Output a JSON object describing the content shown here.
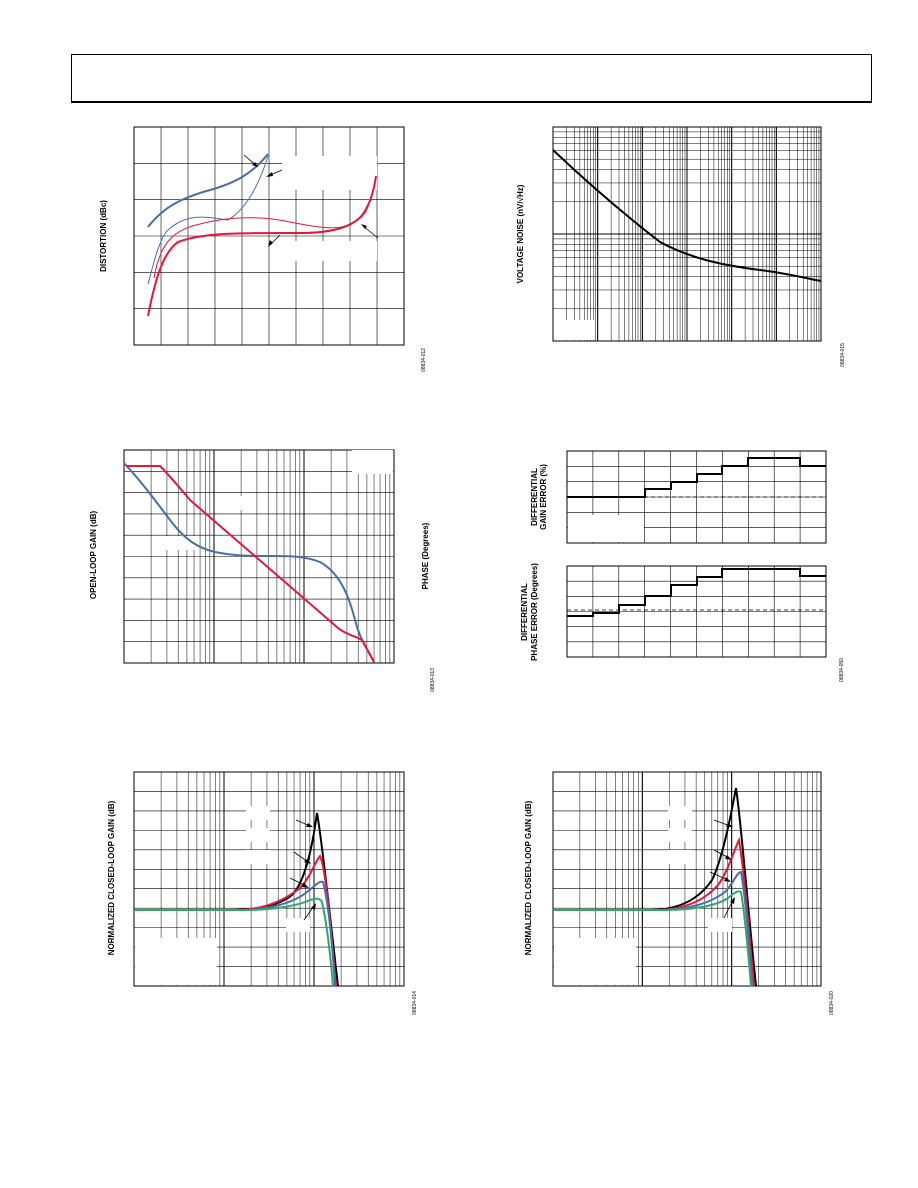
{
  "charts": [
    {
      "id": "dist",
      "ylabel": "DISTORTION (dBc)",
      "code": "08834-012"
    },
    {
      "id": "noise",
      "ylabel": "VOLTAGE NOISE (nV/√Hz)",
      "code": "08834-015"
    },
    {
      "id": "olg",
      "ylabel": "OPEN-LOOP GAIN (dB)",
      "ylabel2": "PHASE (Degrees)",
      "code": "08834-013"
    },
    {
      "id": "diff",
      "ylabel": "DIFFERENTIAL GAIN ERROR (%)",
      "ylabel_line1": "DIFFERENTIAL",
      "ylabel_line2": "GAIN ERROR (%)",
      "ylabel2_line1": "DIFFERENTIAL",
      "ylabel2_line2": "PHASE ERROR (Degrees)",
      "code": "08834-050"
    },
    {
      "id": "cl1",
      "ylabel": "NORMALIZED CLOSED-LOOP GAIN (dB)",
      "code": "08834-014"
    },
    {
      "id": "cl2",
      "ylabel": "NORMALIZED CLOSED-LOOP GAIN (dB)",
      "code": "08834-020"
    }
  ],
  "colors": {
    "blue": "#4a6fa5",
    "red": "#e3193b",
    "green": "#2ea86a",
    "black": "#000000"
  }
}
